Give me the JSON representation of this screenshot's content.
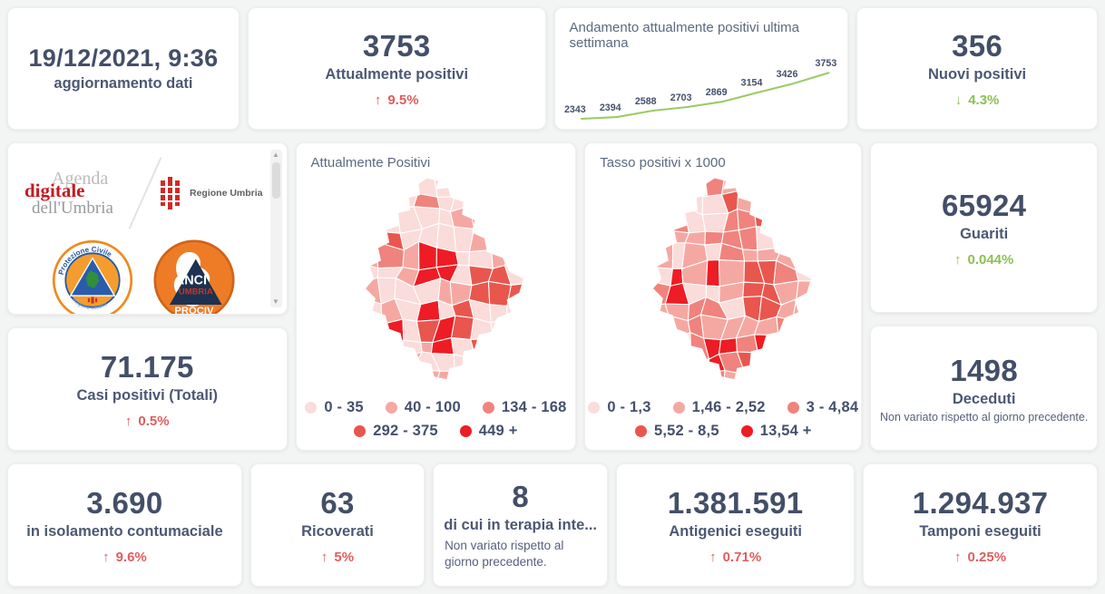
{
  "colors": {
    "accent_red": "#df5d5d",
    "accent_green": "#8cc152",
    "number_navy": "#434f68",
    "line_green": "#9dc968",
    "map_palette": [
      "#fadcda",
      "#f5a8a2",
      "#f0837d",
      "#e9564e",
      "#ee1c24"
    ]
  },
  "cards": {
    "updated": {
      "value": "19/12/2021, 9:36",
      "label": "aggiornamento dati"
    },
    "attualmente_positivi": {
      "value": "3753",
      "label": "Attualmente positivi",
      "arrow": "↑",
      "delta": "9.5%",
      "delta_color": "#df5d5d"
    },
    "nuovi_positivi": {
      "value": "356",
      "label": "Nuovi positivi",
      "arrow": "↓",
      "delta": "4.3%",
      "delta_color": "#8cc152"
    },
    "guariti": {
      "value": "65924",
      "label": "Guariti",
      "arrow": "↑",
      "delta": "0.044%",
      "delta_color": "#8cc152"
    },
    "deceduti": {
      "value": "1498",
      "label": "Deceduti",
      "note": "Non variato rispetto al giorno precedente."
    },
    "casi_positivi": {
      "value": "71.175",
      "label": "Casi positivi (Totali)",
      "arrow": "↑",
      "delta": "0.5%",
      "delta_color": "#df5d5d"
    },
    "isolamento": {
      "value": "3.690",
      "label": "in isolamento contumaciale",
      "arrow": "↑",
      "delta": "9.6%",
      "delta_color": "#df5d5d"
    },
    "ricoverati": {
      "value": "63",
      "label": "Ricoverati",
      "arrow": "↑",
      "delta": "5%",
      "delta_color": "#df5d5d"
    },
    "terapia_intensiva": {
      "value": "8",
      "label": "di cui in terapia inte...",
      "note": "Non variato rispetto al giorno precedente."
    },
    "antigenici": {
      "value": "1.381.591",
      "label": "Antigenici eseguiti",
      "arrow": "↑",
      "delta": "0.71%",
      "delta_color": "#df5d5d"
    },
    "tamponi": {
      "value": "1.294.937",
      "label": "Tamponi eseguiti",
      "arrow": "↑",
      "delta": "0.25%",
      "delta_color": "#df5d5d"
    }
  },
  "chart_data": [
    {
      "type": "line",
      "title": "Andamento attualmente positivi ultima settimana",
      "x": [
        1,
        2,
        3,
        4,
        5,
        6,
        7,
        8
      ],
      "values": [
        2343,
        2394,
        2588,
        2703,
        2869,
        3154,
        3426,
        3753
      ],
      "data_labels": true,
      "axes_hidden": true,
      "grid": false,
      "legend_position": "none",
      "line_color": "#9dc968",
      "ylim": [
        2300,
        3800
      ]
    },
    {
      "type": "heatmap",
      "subtype": "choropleth-map",
      "region": "Umbria (comuni)",
      "title": "Attualmente Positivi",
      "legend_position": "bottom",
      "legend": [
        {
          "label": "0 - 35",
          "color": "#fadcda"
        },
        {
          "label": "40 - 100",
          "color": "#f5a8a2"
        },
        {
          "label": "134 - 168",
          "color": "#f0837d"
        },
        {
          "label": "292 - 375",
          "color": "#e9564e"
        },
        {
          "label": "449 +",
          "color": "#ee1c24"
        }
      ]
    },
    {
      "type": "heatmap",
      "subtype": "choropleth-map",
      "region": "Umbria (comuni)",
      "title": "Tasso positivi x 1000",
      "legend_position": "bottom",
      "legend": [
        {
          "label": "0 - 1,3",
          "color": "#fadcda"
        },
        {
          "label": "1,46 - 2,52",
          "color": "#f5a8a2"
        },
        {
          "label": "3 - 4,84",
          "color": "#f0837d"
        },
        {
          "label": "5,52 - 8,5",
          "color": "#e9564e"
        },
        {
          "label": "13,54 +",
          "color": "#ee1c24"
        }
      ]
    }
  ],
  "logos": {
    "agenda": {
      "line1": "Agenda",
      "line2": "digitale",
      "line3": "dell'Umbria"
    },
    "regione": {
      "label": "Regione Umbria"
    },
    "protezione_civile": {
      "top": "Protezione Civile",
      "bottom": "Regione Umbria"
    },
    "anci": {
      "line1": "ANCI",
      "line2": "UMBRIA",
      "line3": "PROCIV"
    }
  }
}
